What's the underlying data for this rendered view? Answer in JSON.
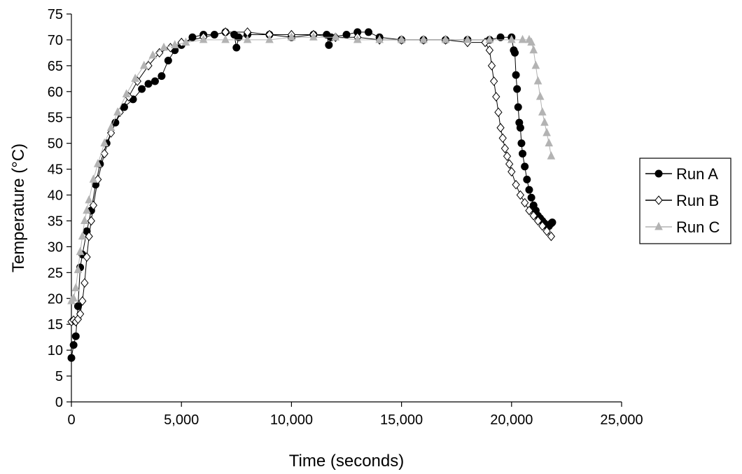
{
  "chart_data": {
    "type": "line",
    "title": "",
    "xlabel": "Time (seconds)",
    "ylabel": "Temperature (°C)",
    "xlim": [
      0,
      25000
    ],
    "ylim": [
      0,
      75
    ],
    "x_ticks": [
      0,
      5000,
      10000,
      15000,
      20000,
      25000
    ],
    "x_tick_labels": [
      "0",
      "5,000",
      "10,000",
      "15,000",
      "20,000",
      "25,000"
    ],
    "y_ticks": [
      0,
      5,
      10,
      15,
      20,
      25,
      30,
      35,
      40,
      45,
      50,
      55,
      60,
      65,
      70,
      75
    ],
    "y_tick_labels": [
      "0",
      "5",
      "10",
      "15",
      "20",
      "25",
      "30",
      "35",
      "40",
      "45",
      "50",
      "55",
      "60",
      "65",
      "70",
      "75"
    ],
    "grid": false,
    "legend_position": "right",
    "series": [
      {
        "name": "Run A",
        "marker": "filled-circle",
        "color": "#000000",
        "x": [
          0,
          100,
          200,
          300,
          400,
          500,
          700,
          900,
          1100,
          1300,
          1600,
          2000,
          2400,
          2800,
          3200,
          3500,
          3800,
          4100,
          4400,
          4700,
          5000,
          5500,
          6000,
          6500,
          7000,
          7400,
          7500,
          7600,
          8000,
          9000,
          10000,
          11000,
          11600,
          11700,
          11800,
          12500,
          13000,
          13500,
          14000,
          15000,
          16000,
          17000,
          18000,
          19000,
          19500,
          20000,
          20100,
          20150,
          20200,
          20250,
          20300,
          20350,
          20400,
          20450,
          20500,
          20600,
          20700,
          20800,
          20900,
          21000,
          21100,
          21200,
          21300,
          21400,
          21500,
          21600,
          21700,
          21800,
          21850
        ],
        "y": [
          8.5,
          11,
          12.7,
          18.5,
          26,
          28.5,
          33,
          37,
          42,
          46,
          50,
          54,
          57,
          58.5,
          60.5,
          61.5,
          62,
          63,
          66,
          68,
          69,
          70.5,
          71,
          71,
          71.5,
          71,
          68.5,
          70.5,
          71,
          71,
          70.5,
          71,
          71,
          69,
          70.5,
          71,
          71.5,
          71.5,
          70.5,
          70,
          70,
          70,
          70,
          70,
          70.5,
          70.5,
          68,
          67.5,
          63.2,
          60.5,
          57,
          54,
          53,
          50,
          48,
          45.5,
          43,
          41,
          39.5,
          38,
          37,
          36,
          35.5,
          35,
          34.5,
          34.2,
          34,
          34.5,
          34.7
        ]
      },
      {
        "name": "Run B",
        "marker": "open-diamond",
        "color": "#000000",
        "x": [
          0,
          100,
          200,
          300,
          400,
          500,
          600,
          700,
          800,
          900,
          1000,
          1200,
          1500,
          1800,
          2200,
          2600,
          3000,
          3500,
          4000,
          4500,
          5000,
          6000,
          7000,
          8000,
          9000,
          10000,
          11000,
          12000,
          13000,
          14000,
          15000,
          16000,
          17000,
          18000,
          18800,
          19000,
          19100,
          19200,
          19300,
          19400,
          19500,
          19600,
          19700,
          19800,
          19900,
          20000,
          20200,
          20400,
          20600,
          20800,
          21000,
          21200,
          21400,
          21600,
          21800
        ],
        "y": [
          15.5,
          15.8,
          15.5,
          16,
          17,
          19.5,
          23,
          28,
          32,
          35,
          38,
          43,
          48,
          52,
          56,
          59,
          62,
          65,
          67.5,
          68.5,
          69.5,
          70.5,
          71.5,
          71.5,
          71,
          71,
          71,
          70.5,
          70.5,
          70,
          70,
          70,
          70,
          69.5,
          69.5,
          68,
          65,
          62,
          59,
          56,
          53,
          51,
          49,
          47.5,
          46,
          44.5,
          42,
          40,
          38.5,
          37,
          36,
          35,
          34,
          33,
          32
        ]
      },
      {
        "name": "Run C",
        "marker": "filled-triangle",
        "color": "#b3b3b3",
        "x": [
          0,
          100,
          200,
          300,
          400,
          500,
          600,
          700,
          800,
          1000,
          1200,
          1500,
          1800,
          2100,
          2500,
          2900,
          3300,
          3700,
          4200,
          4700,
          5200,
          6000,
          7000,
          8000,
          9000,
          10000,
          11000,
          12000,
          13000,
          14000,
          15000,
          16000,
          17000,
          18000,
          19000,
          20000,
          20500,
          20800,
          20900,
          21000,
          21100,
          21200,
          21300,
          21400,
          21500,
          21600,
          21700,
          21800
        ],
        "y": [
          19.5,
          20,
          22,
          25.5,
          29,
          32,
          35,
          37,
          39,
          43,
          46,
          50,
          53,
          56,
          59.5,
          62.5,
          65,
          67,
          68.5,
          69,
          69.5,
          70,
          70,
          70,
          70,
          70.5,
          70.5,
          70.5,
          70,
          70,
          70,
          70,
          70,
          70,
          70,
          70,
          70,
          70,
          69.5,
          68,
          65,
          62,
          59,
          56,
          54,
          52,
          50,
          47.5
        ]
      }
    ]
  }
}
